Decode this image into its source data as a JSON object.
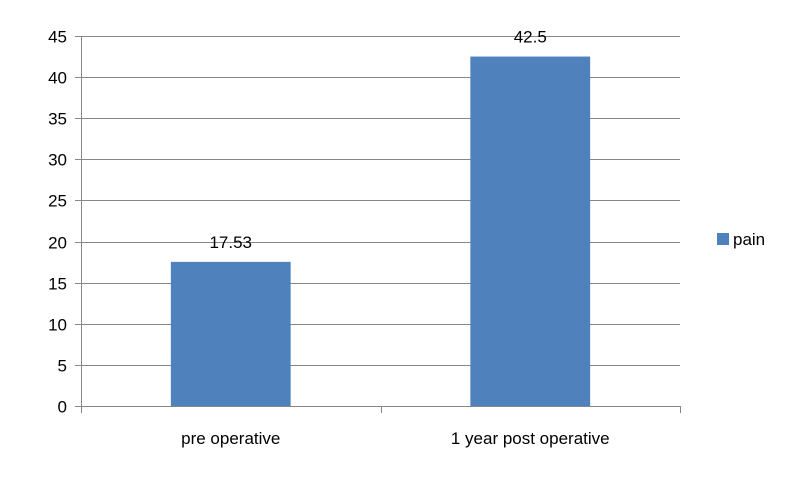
{
  "chart_data": {
    "type": "bar",
    "categories": [
      "pre operative",
      "1 year post operative"
    ],
    "series": [
      {
        "name": "pain",
        "values": [
          17.53,
          42.5
        ],
        "color": "#4F81BD"
      }
    ],
    "data_labels": [
      "17.53",
      "42.5"
    ],
    "ylim": [
      0,
      45
    ],
    "yticks": [
      0,
      5,
      10,
      15,
      20,
      25,
      30,
      35,
      40,
      45
    ],
    "grid": true,
    "legend_position": "right"
  }
}
